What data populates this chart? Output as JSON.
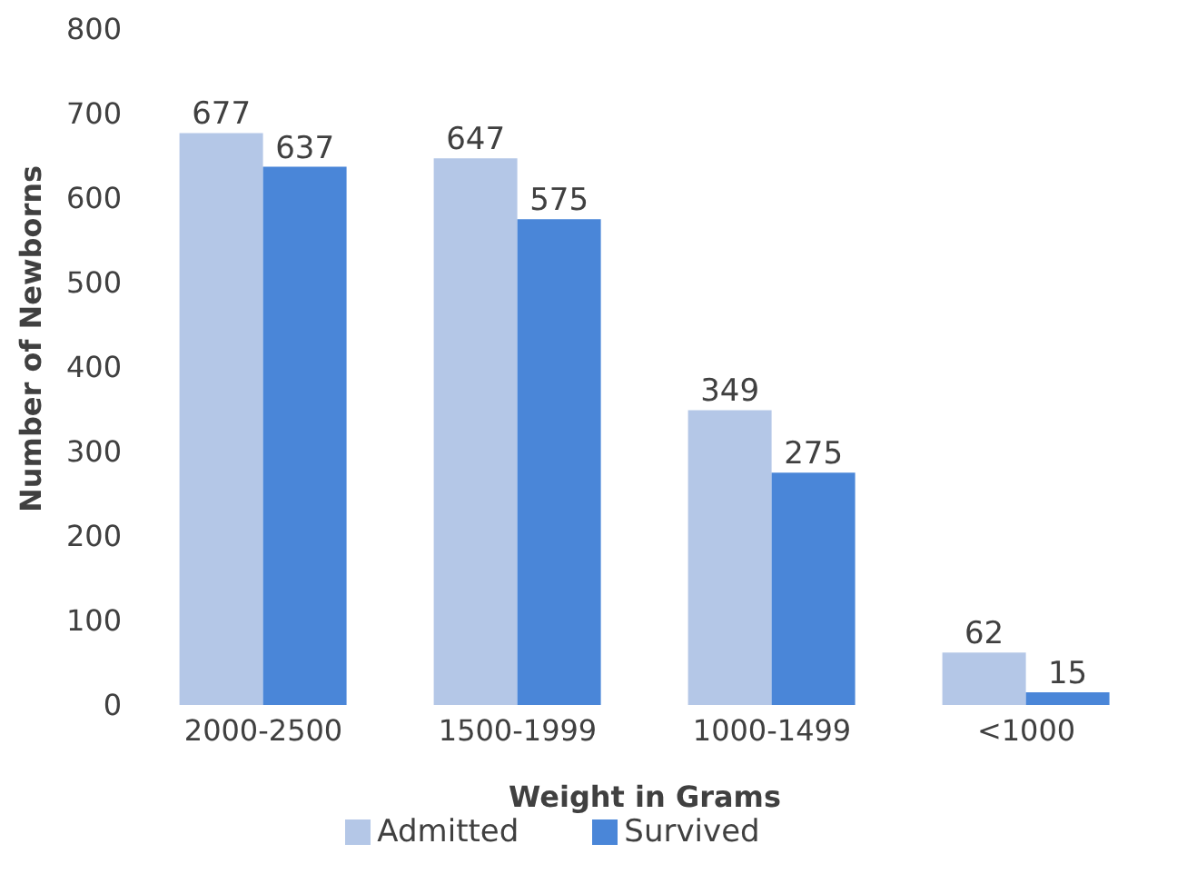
{
  "chart_data": {
    "type": "bar",
    "xlabel": "Weight in Grams",
    "ylabel": "Number of Newborns",
    "categories": [
      "2000-2500",
      "1500-1999",
      "1000-1499",
      "<1000"
    ],
    "series": [
      {
        "name": "Admitted",
        "color": "#b4c7e7",
        "values": [
          677,
          647,
          349,
          62
        ]
      },
      {
        "name": "Survived",
        "color": "#4a86d8",
        "values": [
          637,
          575,
          275,
          15
        ]
      }
    ],
    "ylim": [
      0,
      800
    ],
    "yticks": [
      0,
      100,
      200,
      300,
      400,
      500,
      600,
      700,
      800
    ],
    "grid": false,
    "legend": "bottom",
    "data_labels": true
  }
}
